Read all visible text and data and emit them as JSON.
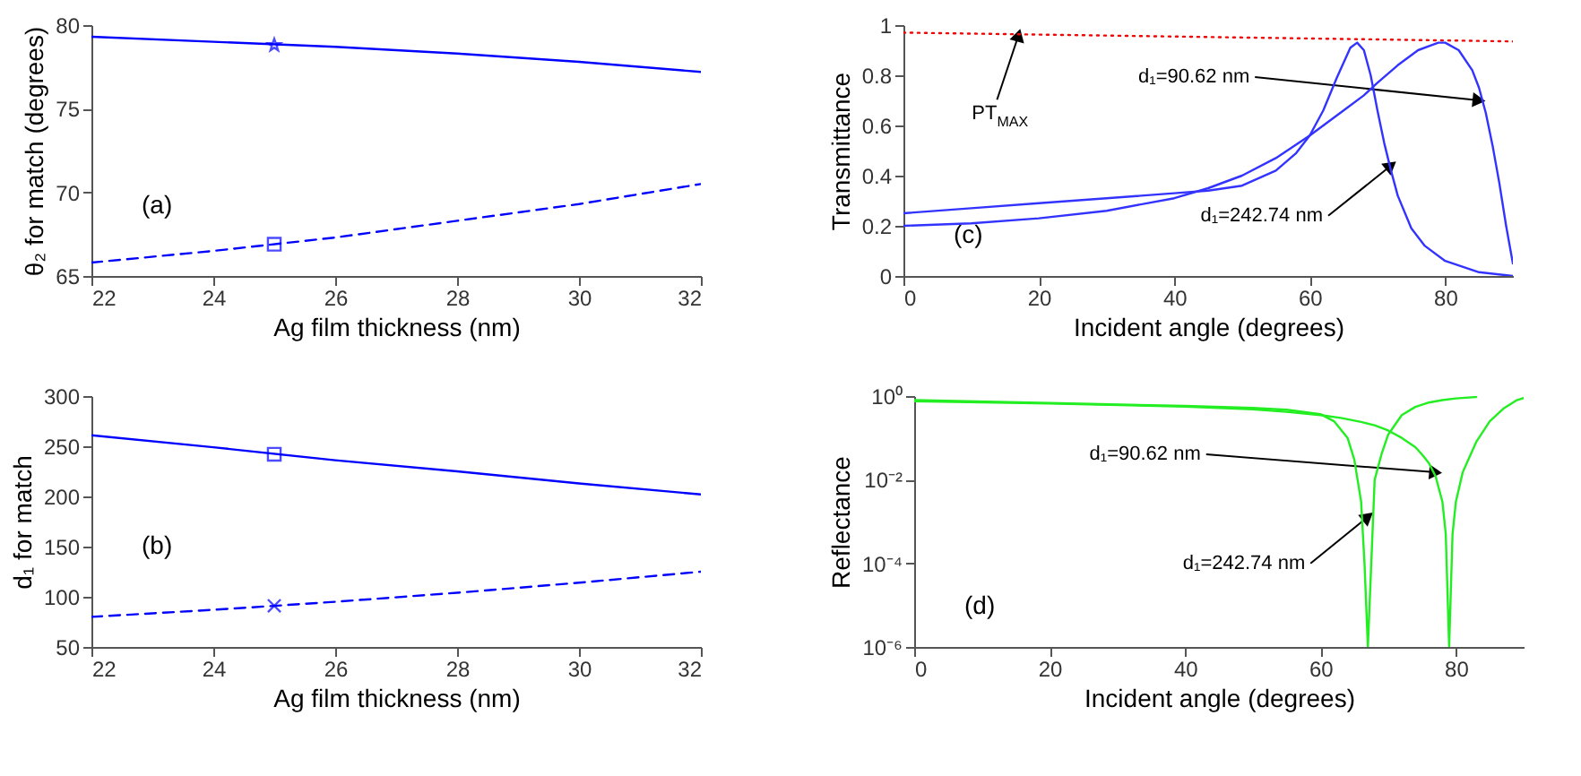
{
  "chart_data": [
    {
      "type": "line",
      "xlabel": "Ag film thickness (nm)",
      "ylabel": "θ₂ for match (degrees)",
      "xlim": [
        22,
        32
      ],
      "xticks": [
        22,
        24,
        26,
        28,
        30,
        32
      ],
      "ylim": [
        65,
        80
      ],
      "yticks": [
        65,
        70,
        75,
        80
      ],
      "annotations": [
        "(a)"
      ],
      "series": [
        {
          "type": "line",
          "color": "#0000ff",
          "line_style": "solid",
          "x": [
            22,
            24,
            26,
            28,
            30,
            32
          ],
          "values": [
            79.3,
            79.0,
            78.7,
            78.3,
            77.8,
            77.2
          ]
        },
        {
          "type": "line",
          "color": "#0000ff",
          "line_style": "dashed",
          "x": [
            22,
            24,
            26,
            28,
            30,
            32
          ],
          "values": [
            65.8,
            66.5,
            67.3,
            68.3,
            69.3,
            70.5
          ]
        },
        {
          "type": "scatter",
          "color": "#0000ff",
          "marker": "star",
          "x": [
            25
          ],
          "values": [
            78.8
          ]
        },
        {
          "type": "scatter",
          "color": "#0000ff",
          "marker": "square",
          "x": [
            25
          ],
          "values": [
            66.9
          ]
        }
      ]
    },
    {
      "type": "line",
      "xlabel": "Incident angle (degrees)",
      "ylabel": "Transmittance",
      "xlim": [
        0,
        90
      ],
      "xticks": [
        0,
        20,
        40,
        60,
        80
      ],
      "ylim": [
        0,
        1
      ],
      "yticks": [
        0,
        0.2,
        0.4,
        0.6,
        0.8,
        1
      ],
      "annotations": [
        "(c)",
        {
          "text": "PT$_{MAX}$",
          "x": 17,
          "y": 0.96
        },
        {
          "text": "d₁=90.62 nm",
          "x": 85,
          "y": 0.7
        },
        {
          "text": "d₁=242.74 nm",
          "x": 72,
          "y": 0.44
        }
      ],
      "series": [
        {
          "type": "line",
          "color": "#ff0000",
          "line_style": "dotted",
          "x": [
            0,
            90
          ],
          "values": [
            0.97,
            0.935
          ]
        },
        {
          "type": "line",
          "color": "#3333ff",
          "line_style": "solid",
          "x": [
            0,
            10,
            20,
            30,
            40,
            45,
            50,
            55,
            58,
            60,
            62,
            64,
            66,
            67,
            68,
            69,
            70,
            71,
            72,
            73,
            75,
            77,
            80,
            85,
            90
          ],
          "values": [
            0.25,
            0.27,
            0.29,
            0.31,
            0.33,
            0.34,
            0.36,
            0.42,
            0.49,
            0.56,
            0.66,
            0.79,
            0.91,
            0.93,
            0.9,
            0.8,
            0.66,
            0.53,
            0.42,
            0.32,
            0.19,
            0.12,
            0.06,
            0.015,
            0
          ]
        },
        {
          "type": "line",
          "color": "#3333ff",
          "line_style": "solid",
          "x": [
            0,
            10,
            20,
            30,
            40,
            45,
            50,
            55,
            60,
            65,
            68,
            70,
            73,
            76,
            78,
            79,
            80,
            82,
            84,
            85,
            86,
            87,
            88,
            89,
            90
          ],
          "values": [
            0.2,
            0.21,
            0.23,
            0.26,
            0.31,
            0.35,
            0.4,
            0.47,
            0.56,
            0.66,
            0.72,
            0.77,
            0.84,
            0.9,
            0.92,
            0.93,
            0.93,
            0.9,
            0.82,
            0.75,
            0.65,
            0.52,
            0.37,
            0.2,
            0.05
          ]
        }
      ]
    },
    {
      "type": "line",
      "xlabel": "Ag film thickness (nm)",
      "ylabel": "d₁ for match",
      "xlim": [
        22,
        32
      ],
      "xticks": [
        22,
        24,
        26,
        28,
        30,
        32
      ],
      "ylim": [
        50,
        300
      ],
      "yticks": [
        50,
        100,
        150,
        200,
        250,
        300
      ],
      "annotations": [
        "(b)"
      ],
      "series": [
        {
          "type": "line",
          "color": "#0000ff",
          "line_style": "solid",
          "x": [
            22,
            24,
            26,
            28,
            30,
            32
          ],
          "values": [
            261,
            249,
            236,
            225,
            213,
            202
          ]
        },
        {
          "type": "line",
          "color": "#0000ff",
          "line_style": "dashed",
          "x": [
            22,
            24,
            26,
            28,
            30,
            32
          ],
          "values": [
            80,
            87,
            95,
            104,
            114,
            125
          ]
        },
        {
          "type": "scatter",
          "color": "#0000ff",
          "marker": "square",
          "x": [
            25
          ],
          "values": [
            242
          ]
        },
        {
          "type": "scatter",
          "color": "#0000ff",
          "marker": "cross",
          "x": [
            25
          ],
          "values": [
            91
          ]
        }
      ]
    },
    {
      "type": "line",
      "xlabel": "Incident angle (degrees)",
      "ylabel": "Reflectance",
      "log": "y",
      "xlim": [
        0,
        90
      ],
      "xticks": [
        0,
        20,
        40,
        60,
        80
      ],
      "ylim": [
        1e-06,
        1
      ],
      "yticks": [
        {
          "value": 1,
          "label": "10⁰"
        },
        {
          "value": 0.01,
          "label": "10⁻²"
        },
        {
          "value": 0.0001,
          "label": "10⁻⁴"
        },
        {
          "value": 1e-06,
          "label": "10⁻⁶"
        }
      ],
      "annotations": [
        "(d)",
        {
          "text": "d₁=90.62 nm",
          "x": 77,
          "y": 0.015
        },
        {
          "text": "d₁=242.74 nm",
          "x": 67,
          "y": 0.0013
        }
      ],
      "series": [
        {
          "type": "line",
          "color": "#22ee22",
          "line_style": "solid",
          "x": [
            0,
            20,
            40,
            50,
            55,
            60,
            62,
            64,
            65,
            66,
            66.5,
            67,
            67.5,
            68,
            69,
            70,
            72,
            74,
            76,
            78,
            80,
            83
          ],
          "values": [
            0.8,
            0.68,
            0.58,
            0.52,
            0.47,
            0.37,
            0.25,
            0.1,
            0.03,
            0.003,
            0.0001,
            1e-06,
            0.0001,
            0.01,
            0.04,
            0.12,
            0.35,
            0.55,
            0.7,
            0.8,
            0.88,
            0.95
          ]
        },
        {
          "type": "line",
          "color": "#22ee22",
          "line_style": "solid",
          "x": [
            0,
            20,
            40,
            50,
            55,
            60,
            63,
            66,
            68,
            70,
            72,
            74,
            75,
            76,
            77,
            78,
            78.5,
            79,
            79.5,
            80,
            81,
            83,
            85,
            87,
            89,
            90
          ],
          "values": [
            0.75,
            0.66,
            0.56,
            0.48,
            0.42,
            0.35,
            0.3,
            0.24,
            0.2,
            0.15,
            0.1,
            0.06,
            0.04,
            0.025,
            0.012,
            0.003,
            0.0005,
            1e-06,
            0.0005,
            0.003,
            0.015,
            0.08,
            0.25,
            0.5,
            0.8,
            0.9
          ]
        }
      ]
    }
  ]
}
